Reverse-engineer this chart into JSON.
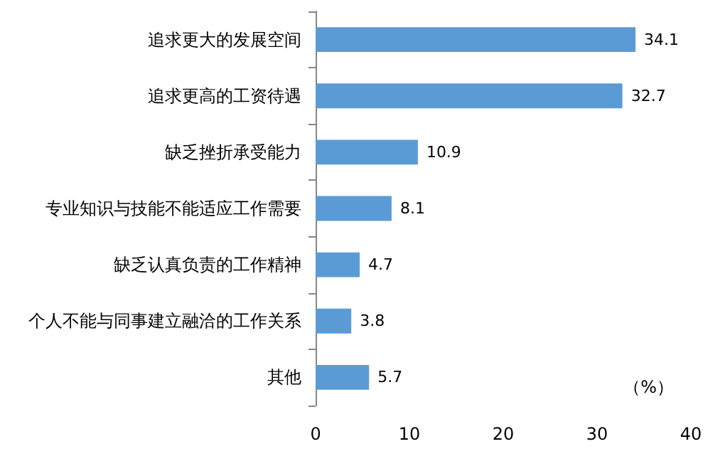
{
  "chart_data": {
    "type": "bar",
    "orientation": "horizontal",
    "categories": [
      "追求更大的发展空间",
      "追求更高的工资待遇",
      "缺乏挫折承受能力",
      "专业知识与技能不能适应工作需要",
      "缺乏认真负责的工作精神",
      "个人不能与同事建立融洽的工作关系",
      "其他"
    ],
    "values": [
      34.1,
      32.7,
      10.9,
      8.1,
      4.7,
      3.8,
      5.7
    ],
    "color": "#5b9bd5",
    "xlim": [
      0,
      40
    ],
    "xticks": [
      0,
      10,
      20,
      30,
      40
    ],
    "data_labels": true,
    "grid": false,
    "annotations": [
      "（%）"
    ]
  }
}
